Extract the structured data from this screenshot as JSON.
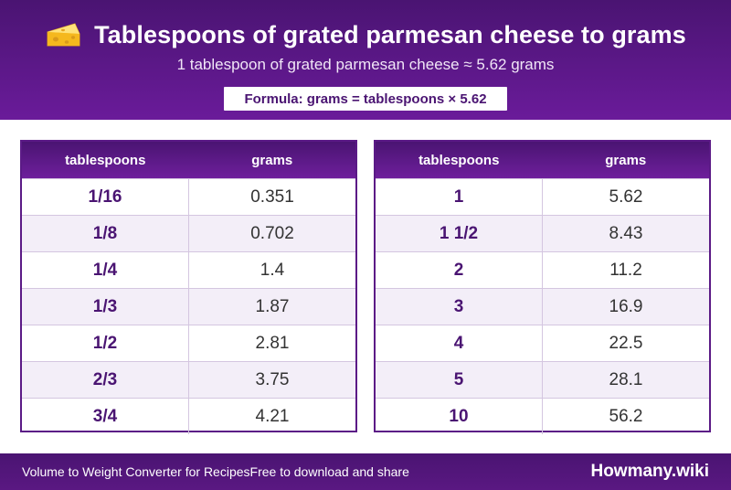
{
  "header": {
    "title": "Tablespoons of grated parmesan cheese to grams",
    "subtitle": "1 tablespoon of grated parmesan cheese ≈ 5.62 grams",
    "formula": "Formula: grams = tablespoons × 5.62",
    "icon": "cheese-icon"
  },
  "tables": {
    "left": {
      "columns": [
        "tablespoons",
        "grams"
      ],
      "rows": [
        {
          "tbsp": "1/16",
          "grams": "0.351"
        },
        {
          "tbsp": "1/8",
          "grams": "0.702"
        },
        {
          "tbsp": "1/4",
          "grams": "1.4"
        },
        {
          "tbsp": "1/3",
          "grams": "1.87"
        },
        {
          "tbsp": "1/2",
          "grams": "2.81"
        },
        {
          "tbsp": "2/3",
          "grams": "3.75"
        },
        {
          "tbsp": "3/4",
          "grams": "4.21"
        }
      ]
    },
    "right": {
      "columns": [
        "tablespoons",
        "grams"
      ],
      "rows": [
        {
          "tbsp": "1",
          "grams": "5.62"
        },
        {
          "tbsp": "1 1/2",
          "grams": "8.43"
        },
        {
          "tbsp": "2",
          "grams": "11.2"
        },
        {
          "tbsp": "3",
          "grams": "16.9"
        },
        {
          "tbsp": "4",
          "grams": "22.5"
        },
        {
          "tbsp": "5",
          "grams": "28.1"
        },
        {
          "tbsp": "10",
          "grams": "56.2"
        }
      ]
    }
  },
  "footer": {
    "left_text": "Volume to Weight Converter for Recipes",
    "middle_text": "Free to download and share",
    "brand": "Howmany.wiki"
  },
  "colors": {
    "primary": "#4a1472",
    "accent": "#6a1b9a",
    "row_alt": "#f3eef8"
  }
}
